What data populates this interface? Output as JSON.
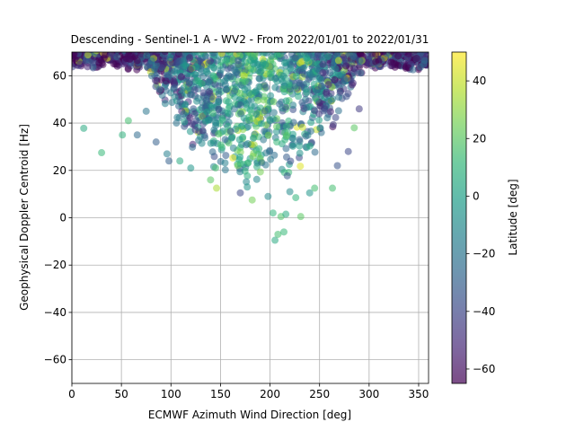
{
  "chart_data": {
    "type": "scatter",
    "title": "Descending - Sentinel-1 A - WV2 - From 2022/01/01 to 2022/01/31",
    "xlabel": "ECMWF Azimuth Wind Direction [deg]",
    "ylabel": "Geophysical Doppler Centroid [Hz]",
    "xlim": [
      0,
      360
    ],
    "ylim": [
      -70,
      70
    ],
    "xticks": [
      0,
      50,
      100,
      150,
      200,
      250,
      300,
      350
    ],
    "yticks": [
      -60,
      -40,
      -20,
      0,
      20,
      40,
      60
    ],
    "grid": true,
    "point_alpha": 0.55,
    "colorbar": {
      "label": "Latitude [deg]",
      "range": [
        -65,
        50
      ],
      "ticks": [
        -60,
        -40,
        -20,
        0,
        20,
        40
      ],
      "colormap": "viridis",
      "stops": [
        "#440154",
        "#482878",
        "#3e4989",
        "#31688e",
        "#26828e",
        "#1f9e89",
        "#35b779",
        "#6ece58",
        "#b5de2b",
        "#fde725"
      ]
    },
    "points": [
      {
        "x": 12,
        "y": 37.8,
        "lat": 5
      },
      {
        "x": 30,
        "y": 27.5,
        "lat": 12
      },
      {
        "x": 51,
        "y": 35,
        "lat": 8
      },
      {
        "x": 57,
        "y": 41,
        "lat": 15
      },
      {
        "x": 66,
        "y": 35,
        "lat": -25
      },
      {
        "x": 75,
        "y": 45,
        "lat": -20
      },
      {
        "x": 85,
        "y": 32,
        "lat": -30
      },
      {
        "x": 96,
        "y": 27,
        "lat": -15
      },
      {
        "x": 98,
        "y": 24,
        "lat": -30
      },
      {
        "x": 109,
        "y": 24,
        "lat": 5
      },
      {
        "x": 120,
        "y": 21,
        "lat": -5
      },
      {
        "x": 140,
        "y": 16,
        "lat": 20
      },
      {
        "x": 146,
        "y": 12.5,
        "lat": 35
      },
      {
        "x": 170,
        "y": 10.5,
        "lat": -40
      },
      {
        "x": 177,
        "y": 13,
        "lat": -5
      },
      {
        "x": 182,
        "y": 7.5,
        "lat": 25
      },
      {
        "x": 198,
        "y": 9,
        "lat": -10
      },
      {
        "x": 203,
        "y": 2,
        "lat": 10
      },
      {
        "x": 205,
        "y": -9.5,
        "lat": 5
      },
      {
        "x": 208,
        "y": -7,
        "lat": 15
      },
      {
        "x": 211,
        "y": 0.5,
        "lat": 18
      },
      {
        "x": 214,
        "y": -6,
        "lat": 12
      },
      {
        "x": 216,
        "y": 1.5,
        "lat": 5
      },
      {
        "x": 220,
        "y": 11,
        "lat": -10
      },
      {
        "x": 226,
        "y": 8.5,
        "lat": 10
      },
      {
        "x": 231,
        "y": 0.5,
        "lat": 20
      },
      {
        "x": 240,
        "y": 10.5,
        "lat": -5
      },
      {
        "x": 245,
        "y": 12.5,
        "lat": 15
      },
      {
        "x": 263,
        "y": 12.5,
        "lat": 15
      },
      {
        "x": 268,
        "y": 22,
        "lat": -35
      },
      {
        "x": 279,
        "y": 28,
        "lat": -40
      },
      {
        "x": 285,
        "y": 38,
        "lat": 20
      },
      {
        "x": 290,
        "y": 46,
        "lat": -45
      }
    ]
  }
}
